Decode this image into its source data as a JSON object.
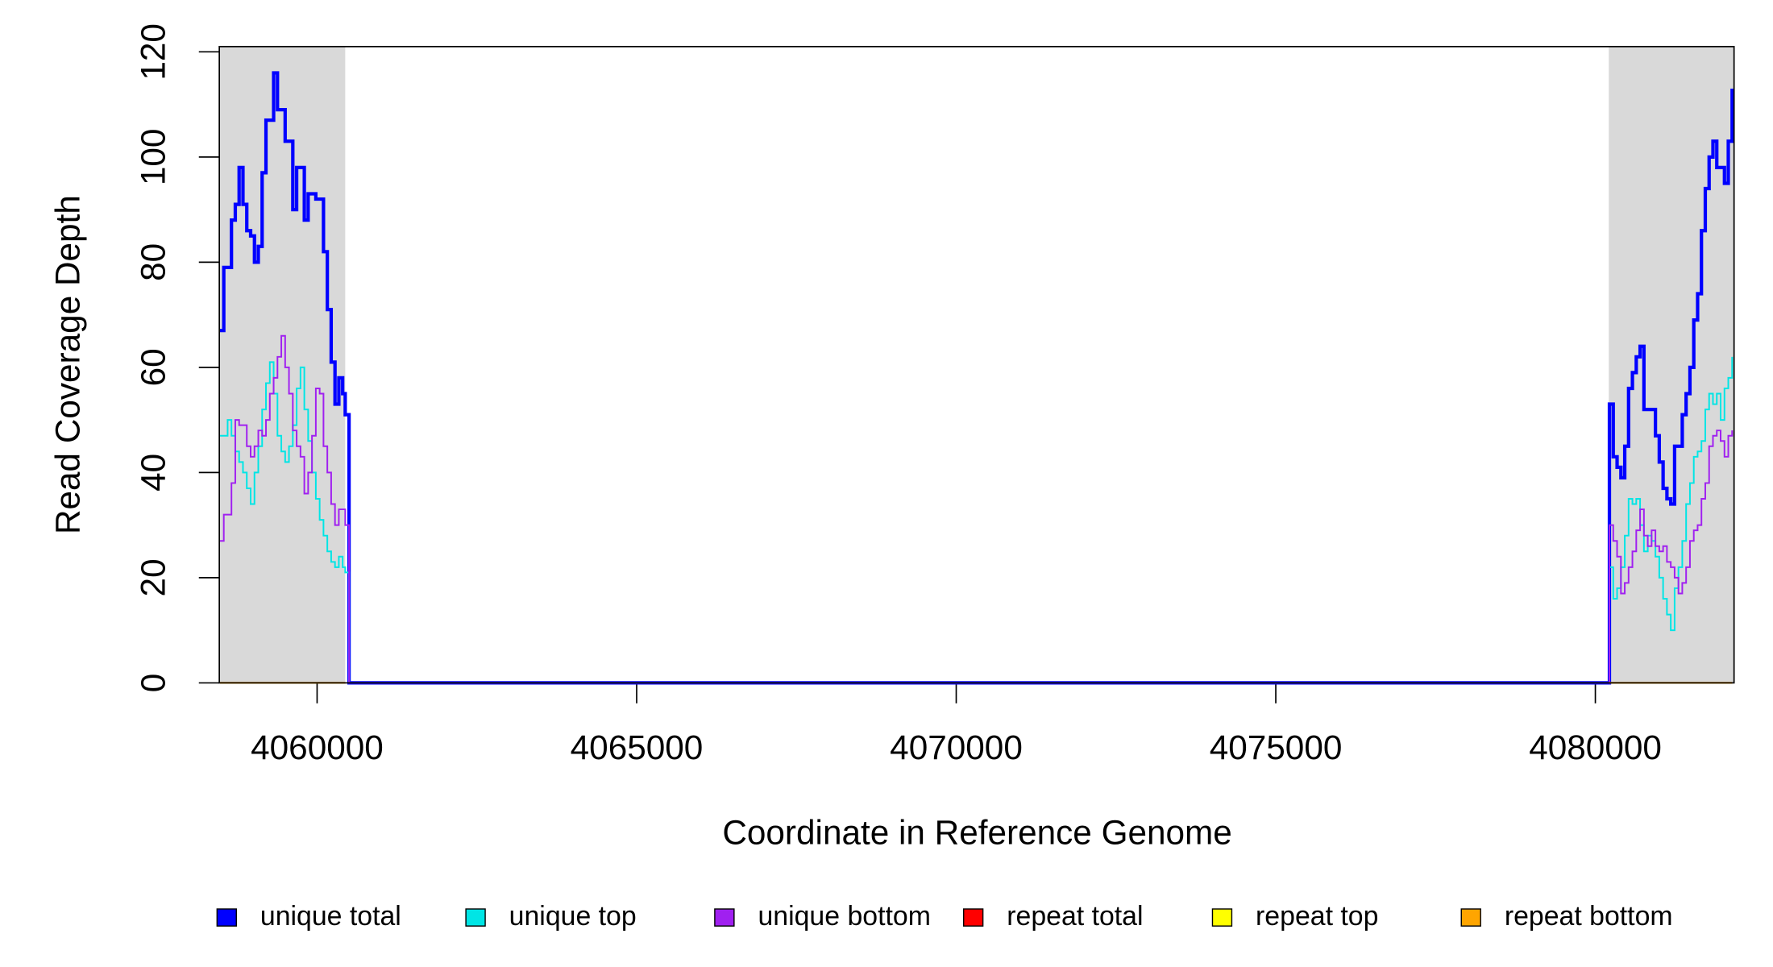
{
  "chart_data": {
    "type": "step-line",
    "xlabel": "Coordinate in Reference Genome",
    "ylabel": "Read Coverage Depth",
    "xlim": [
      4058470,
      4082170
    ],
    "ylim": [
      0,
      121
    ],
    "xticks": [
      4060000,
      4065000,
      4070000,
      4075000,
      4080000
    ],
    "yticks": [
      0,
      20,
      40,
      60,
      80,
      100,
      120
    ],
    "shaded_regions": [
      [
        4058470,
        4060440
      ],
      [
        4080210,
        4082170
      ]
    ],
    "legend": "bottom",
    "x": [
      4058480,
      4058540,
      4058600,
      4058660,
      4058720,
      4058780,
      4058840,
      4058900,
      4058960,
      4059020,
      4059080,
      4059140,
      4059200,
      4059260,
      4059320,
      4059380,
      4059440,
      4059500,
      4059560,
      4059620,
      4059680,
      4059740,
      4059800,
      4059860,
      4059920,
      4059980,
      4060040,
      4060100,
      4060160,
      4060220,
      4060280,
      4060340,
      4060400,
      4060440,
      4060500,
      4080160,
      4080220,
      4080280,
      4080340,
      4080400,
      4080460,
      4080520,
      4080580,
      4080640,
      4080700,
      4080760,
      4080820,
      4080880,
      4080940,
      4081000,
      4081060,
      4081120,
      4081180,
      4081240,
      4081300,
      4081360,
      4081420,
      4081480,
      4081540,
      4081600,
      4081660,
      4081720,
      4081780,
      4081840,
      4081900,
      4081960,
      4082020,
      4082080,
      4082140
    ],
    "series": [
      {
        "name": "unique total",
        "color": "#0000ff",
        "values": [
          67,
          79,
          79,
          88,
          91,
          98,
          91,
          86,
          85,
          80,
          83,
          97,
          107,
          107,
          116,
          109,
          109,
          103,
          103,
          90,
          98,
          98,
          88,
          93,
          93,
          92,
          92,
          82,
          71,
          61,
          53,
          58,
          55,
          51,
          0,
          0,
          53,
          43,
          41,
          39,
          45,
          56,
          59,
          62,
          64,
          52,
          52,
          52,
          47,
          42,
          37,
          35,
          34,
          45,
          45,
          51,
          55,
          60,
          69,
          74,
          86,
          94,
          100,
          103,
          98,
          98,
          95,
          103,
          113
        ]
      },
      {
        "name": "unique top",
        "color": "#00e5e5",
        "values": [
          47,
          47,
          50,
          47,
          44,
          42,
          40,
          37,
          34,
          40,
          45,
          52,
          57,
          61,
          55,
          47,
          44,
          42,
          45,
          49,
          56,
          60,
          52,
          46,
          40,
          35,
          31,
          28,
          25,
          23,
          22,
          24,
          22,
          21,
          0,
          0,
          22,
          16,
          18,
          22,
          28,
          35,
          34,
          35,
          30,
          25,
          28,
          27,
          24,
          20,
          16,
          13,
          10,
          18,
          22,
          27,
          34,
          38,
          43,
          44,
          46,
          52,
          55,
          53,
          55,
          50,
          56,
          58,
          62
        ]
      },
      {
        "name": "unique bottom",
        "color": "#a020f0",
        "values": [
          27,
          32,
          32,
          38,
          50,
          49,
          49,
          45,
          43,
          45,
          48,
          47,
          50,
          55,
          58,
          62,
          66,
          60,
          55,
          48,
          45,
          43,
          36,
          40,
          47,
          56,
          55,
          45,
          40,
          34,
          30,
          33,
          33,
          30,
          0,
          0,
          30,
          27,
          24,
          17,
          19,
          22,
          25,
          29,
          33,
          28,
          26,
          29,
          26,
          25,
          26,
          23,
          22,
          20,
          17,
          19,
          22,
          27,
          29,
          30,
          35,
          38,
          45,
          47,
          48,
          46,
          43,
          47,
          48
        ]
      },
      {
        "name": "repeat total",
        "color": "#ff0000",
        "values": [
          0,
          0,
          0,
          0,
          0,
          0,
          0,
          0,
          0,
          0,
          0,
          0,
          0,
          0,
          0,
          0,
          0,
          0,
          0,
          0,
          0,
          0,
          0,
          0,
          0,
          0,
          0,
          0,
          0,
          0,
          0,
          0,
          0,
          0,
          null,
          null,
          0,
          0,
          0,
          0,
          0,
          0,
          0,
          0,
          0,
          0,
          0,
          0,
          0,
          0,
          0,
          0,
          0,
          0,
          0,
          0,
          0,
          0,
          0,
          0,
          0,
          0,
          0,
          0,
          0,
          0,
          0,
          0,
          0
        ]
      },
      {
        "name": "repeat top",
        "color": "#ffff00",
        "values": [
          0,
          0,
          0,
          0,
          0,
          0,
          0,
          0,
          0,
          0,
          0,
          0,
          0,
          0,
          0,
          0,
          0,
          0,
          0,
          0,
          0,
          0,
          0,
          0,
          0,
          0,
          0,
          0,
          0,
          0,
          0,
          0,
          0,
          0,
          null,
          null,
          0,
          0,
          0,
          0,
          0,
          0,
          0,
          0,
          0,
          0,
          0,
          0,
          0,
          0,
          0,
          0,
          0,
          0,
          0,
          0,
          0,
          0,
          0,
          0,
          0,
          0,
          0,
          0,
          0,
          0,
          0,
          0,
          0
        ]
      },
      {
        "name": "repeat bottom",
        "color": "#ffa500",
        "values": [
          0,
          0,
          0,
          0,
          0,
          0,
          0,
          0,
          0,
          0,
          0,
          0,
          0,
          0,
          0,
          0,
          0,
          0,
          0,
          0,
          0,
          0,
          0,
          0,
          0,
          0,
          0,
          0,
          0,
          0,
          0,
          0,
          0,
          0,
          null,
          null,
          0,
          0,
          0,
          0,
          0,
          0,
          0,
          0,
          0,
          0,
          0,
          0,
          0,
          0,
          0,
          0,
          0,
          0,
          0,
          0,
          0,
          0,
          0,
          0,
          0,
          0,
          0,
          0,
          0,
          0,
          0,
          0,
          0
        ]
      }
    ]
  }
}
